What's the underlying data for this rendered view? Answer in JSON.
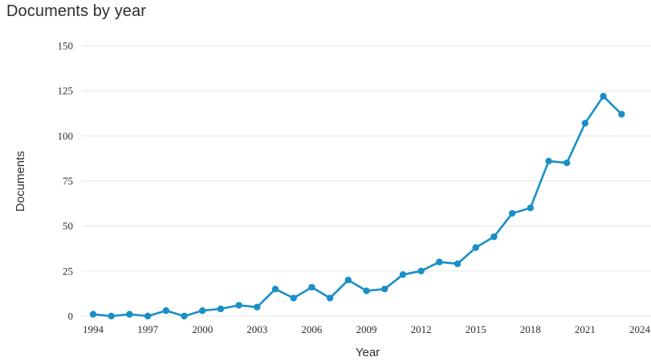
{
  "chart_data": {
    "type": "line",
    "title": "Documents by year",
    "xlabel": "Year",
    "ylabel": "Documents",
    "xlim": [
      1994,
      2024
    ],
    "ylim": [
      0,
      150
    ],
    "x_ticks": [
      1994,
      1997,
      2000,
      2003,
      2006,
      2009,
      2012,
      2015,
      2018,
      2021,
      2024
    ],
    "y_ticks": [
      0,
      25,
      50,
      75,
      100,
      125,
      150
    ],
    "grid": true,
    "legend": "none",
    "series_color": "#1a8fc6",
    "series": [
      {
        "x": [
          1994,
          1995,
          1996,
          1997,
          1998,
          1999,
          2000,
          2001,
          2002,
          2003,
          2004,
          2005,
          2006,
          2007,
          2008,
          2009,
          2010,
          2011,
          2012,
          2013,
          2014,
          2015,
          2016,
          2017,
          2018,
          2019,
          2020,
          2021,
          2022,
          2023
        ],
        "values": [
          1,
          0,
          1,
          0,
          3,
          0,
          3,
          4,
          6,
          5,
          15,
          10,
          16,
          10,
          20,
          14,
          15,
          23,
          25,
          30,
          29,
          38,
          44,
          57,
          60,
          86,
          85,
          107,
          122,
          112
        ]
      }
    ]
  }
}
